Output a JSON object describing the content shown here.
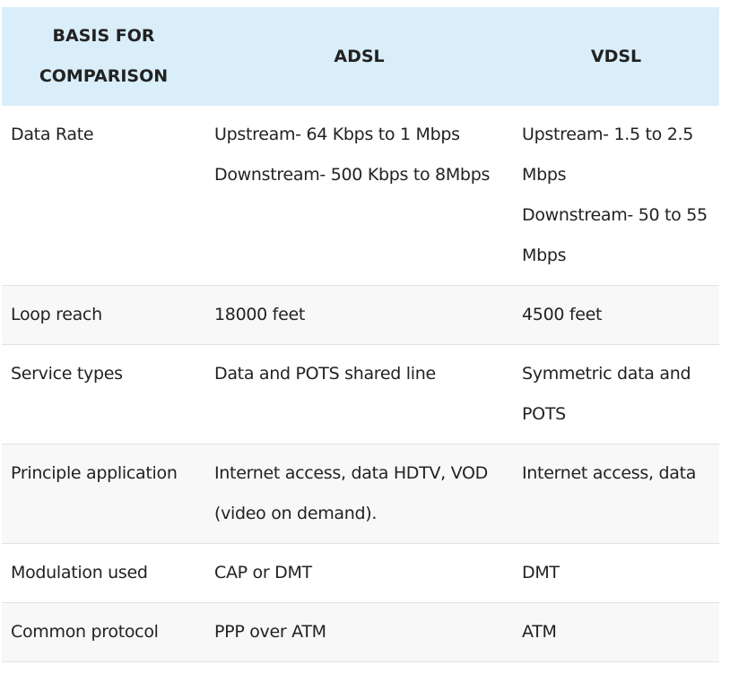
{
  "table": {
    "header": [
      "BASIS FOR COMPARISON",
      "ADSL",
      "VDSL"
    ],
    "rows": [
      [
        "Data Rate",
        [
          "Upstream- 64 Kbps to 1 Mbps",
          "Downstream- 500 Kbps to 8Mbps"
        ],
        [
          "Upstream- 1.5 to 2.5 Mbps",
          "Downstream- 50 to 55 Mbps"
        ]
      ],
      [
        "Loop reach",
        "18000 feet",
        "4500 feet"
      ],
      [
        "Service types",
        "Data and POTS shared line",
        "Symmetric data and POTS"
      ],
      [
        "Principle application",
        "Internet access, data HDTV, VOD (video on demand).",
        "Internet access, data"
      ],
      [
        "Modulation used",
        "CAP or DMT",
        "DMT"
      ],
      [
        "Common protocol",
        "PPP over ATM",
        "ATM"
      ]
    ]
  }
}
